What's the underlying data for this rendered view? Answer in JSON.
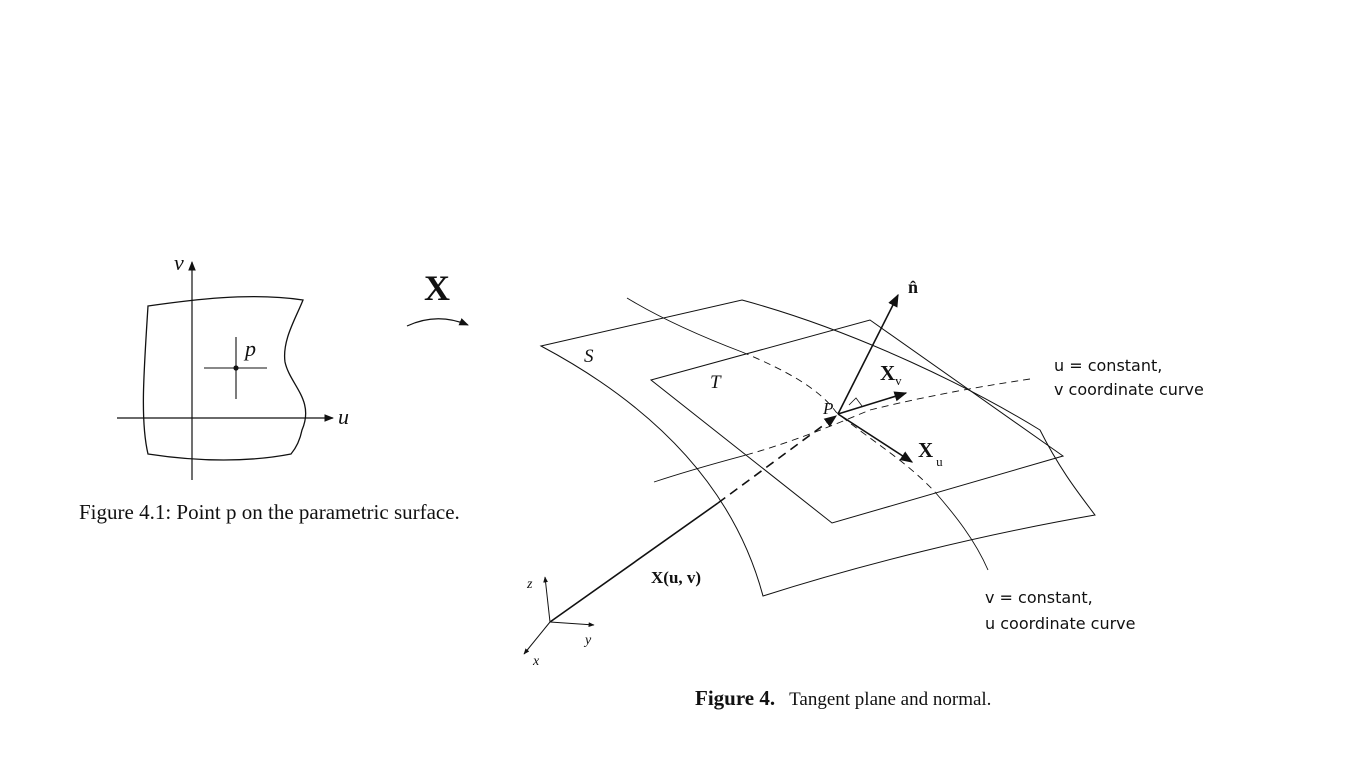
{
  "left_figure": {
    "axis_u": "u",
    "axis_v": "v",
    "point": "p",
    "caption": "Figure 4.1: Point p on the parametric surface."
  },
  "mapping": {
    "label": "X"
  },
  "right_figure": {
    "surface": "S",
    "tangent_plane": "T",
    "point": "P",
    "normal": "n̂",
    "xv_base": "X",
    "xv_sub": "v",
    "xu_base": "X",
    "xu_sub": "u",
    "position_vector": "X(u, v)",
    "axis_x": "x",
    "axis_y": "y",
    "axis_z": "z",
    "curve_u_line1": "u = constant,",
    "curve_u_line2": "v coordinate curve",
    "curve_v_line1": "v = constant,",
    "curve_v_line2": "u coordinate curve",
    "caption_label": "Figure 4.",
    "caption_text": "Tangent plane and normal."
  }
}
